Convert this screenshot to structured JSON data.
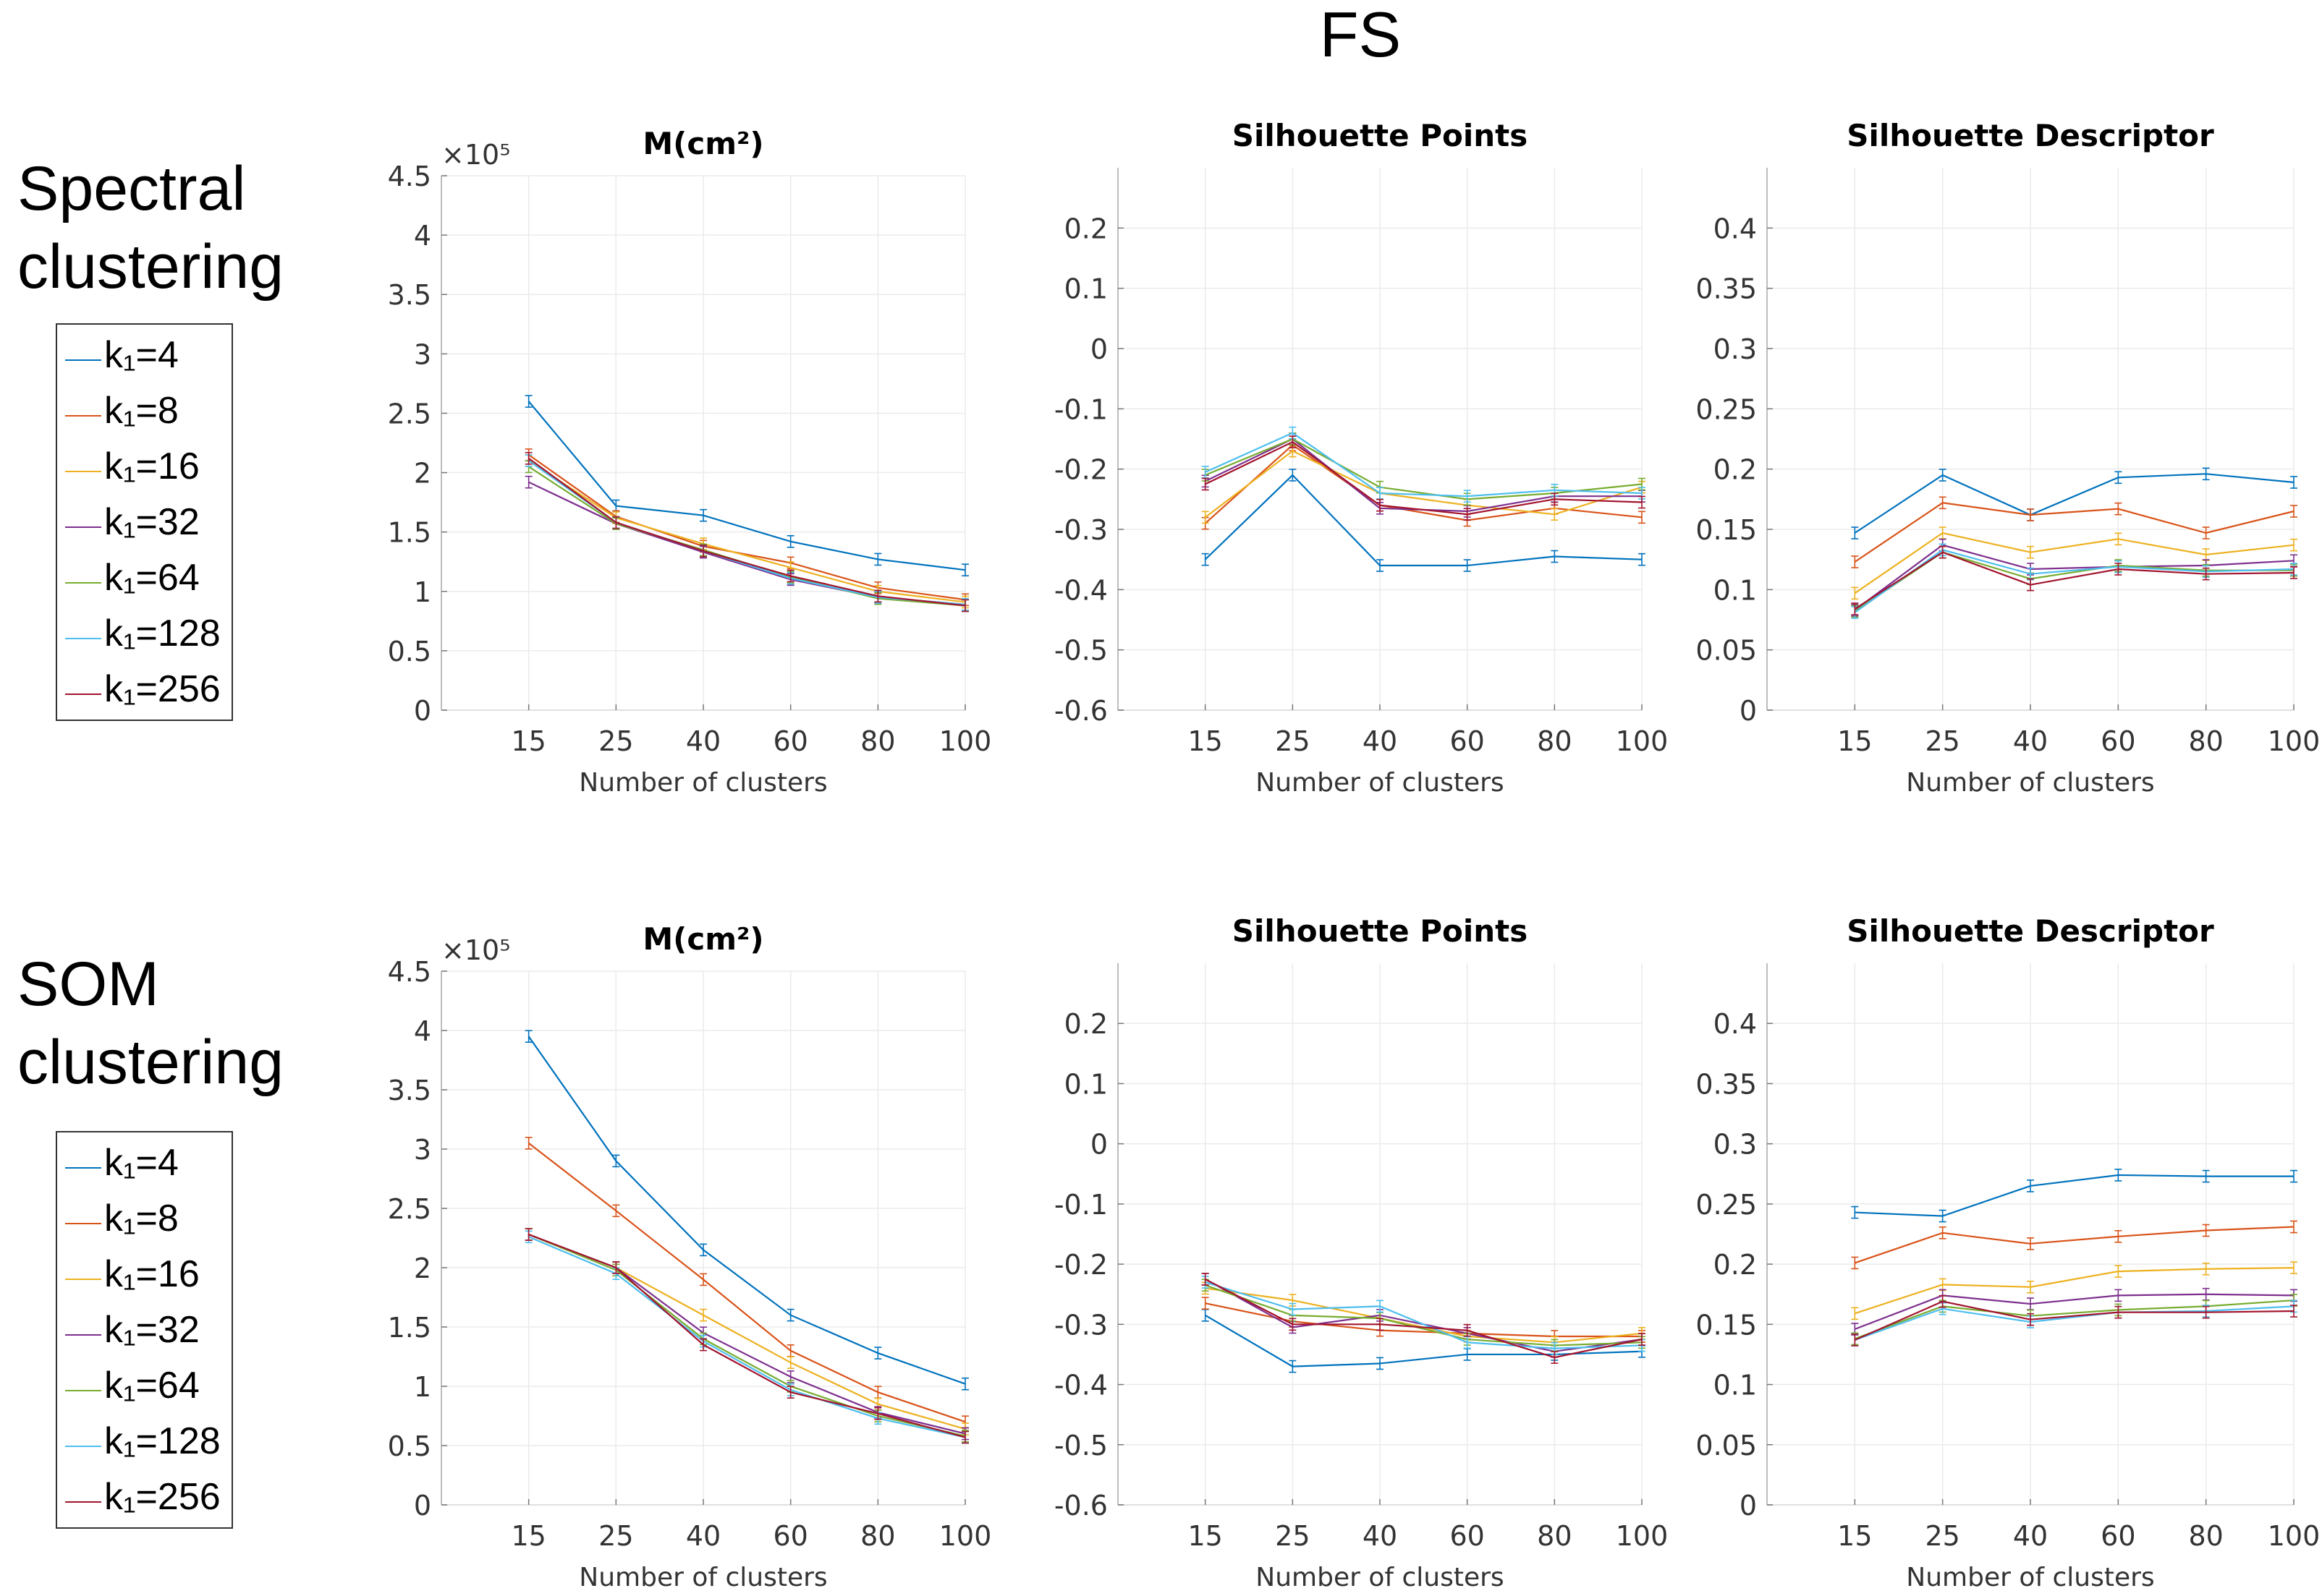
{
  "figure": {
    "title": "FS",
    "row_labels": [
      [
        "Spectral",
        "clustering"
      ],
      [
        "SOM",
        "clustering"
      ]
    ]
  },
  "legend": {
    "entries": [
      "k₁=4",
      "k₁=8",
      "k₁=16",
      "k₁=32",
      "k₁=64",
      "k₁=128",
      "k₁=256"
    ],
    "colors": [
      "#0072BD",
      "#D95319",
      "#EDB120",
      "#7E2F8E",
      "#77AC30",
      "#4DBEEE",
      "#A2142F"
    ]
  },
  "chart_data": [
    {
      "type": "line",
      "title": "M(cm²)",
      "xlabel": "Number of clusters",
      "ylabel": "",
      "categories": [
        "15",
        "25",
        "40",
        "60",
        "80",
        "100"
      ],
      "ylim": [
        0,
        4.5
      ],
      "yticks": [
        "0",
        "0.5",
        "1",
        "1.5",
        "2",
        "2.5",
        "3",
        "3.5",
        "4",
        "4.5"
      ],
      "yscale_label": "×10⁵",
      "series": [
        {
          "name": "k₁=4",
          "values": [
            2.6,
            1.72,
            1.64,
            1.42,
            1.27,
            1.18
          ]
        },
        {
          "name": "k₁=8",
          "values": [
            2.15,
            1.63,
            1.38,
            1.24,
            1.03,
            0.93
          ]
        },
        {
          "name": "k₁=16",
          "values": [
            2.1,
            1.62,
            1.4,
            1.2,
            1.0,
            0.91
          ]
        },
        {
          "name": "k₁=32",
          "values": [
            1.92,
            1.57,
            1.33,
            1.1,
            0.95,
            0.89
          ]
        },
        {
          "name": "k₁=64",
          "values": [
            2.05,
            1.57,
            1.35,
            1.12,
            0.94,
            0.88
          ]
        },
        {
          "name": "k₁=128",
          "values": [
            2.1,
            1.58,
            1.34,
            1.11,
            0.95,
            0.89
          ]
        },
        {
          "name": "k₁=256",
          "values": [
            2.12,
            1.58,
            1.34,
            1.13,
            0.96,
            0.88
          ]
        }
      ]
    },
    {
      "type": "line",
      "title": "Silhouette Points",
      "xlabel": "Number of clusters",
      "ylabel": "",
      "categories": [
        "15",
        "25",
        "40",
        "60",
        "80",
        "100"
      ],
      "ylim": [
        -0.6,
        0.3
      ],
      "yticks": [
        "-0.6",
        "-0.5",
        "-0.4",
        "-0.3",
        "-0.2",
        "-0.1",
        "0",
        "0.1",
        "0.2"
      ],
      "series": [
        {
          "name": "k₁=4",
          "values": [
            -0.35,
            -0.21,
            -0.36,
            -0.36,
            -0.345,
            -0.35
          ]
        },
        {
          "name": "k₁=8",
          "values": [
            -0.29,
            -0.16,
            -0.26,
            -0.285,
            -0.265,
            -0.28
          ]
        },
        {
          "name": "k₁=16",
          "values": [
            -0.28,
            -0.17,
            -0.24,
            -0.26,
            -0.275,
            -0.23
          ]
        },
        {
          "name": "k₁=32",
          "values": [
            -0.22,
            -0.15,
            -0.265,
            -0.27,
            -0.245,
            -0.245
          ]
        },
        {
          "name": "k₁=64",
          "values": [
            -0.21,
            -0.15,
            -0.23,
            -0.25,
            -0.24,
            -0.225
          ]
        },
        {
          "name": "k₁=128",
          "values": [
            -0.205,
            -0.14,
            -0.24,
            -0.245,
            -0.235,
            -0.24
          ]
        },
        {
          "name": "k₁=256",
          "values": [
            -0.225,
            -0.155,
            -0.26,
            -0.275,
            -0.25,
            -0.255
          ]
        }
      ]
    },
    {
      "type": "line",
      "title": "Silhouette Descriptor",
      "xlabel": "Number of clusters",
      "ylabel": "",
      "categories": [
        "15",
        "25",
        "40",
        "60",
        "80",
        "100"
      ],
      "ylim": [
        0,
        0.45
      ],
      "yticks": [
        "0",
        "0.05",
        "0.1",
        "0.15",
        "0.2",
        "0.25",
        "0.3",
        "0.35",
        "0.4"
      ],
      "series": [
        {
          "name": "k₁=4",
          "values": [
            0.147,
            0.195,
            0.162,
            0.193,
            0.196,
            0.189
          ]
        },
        {
          "name": "k₁=8",
          "values": [
            0.123,
            0.172,
            0.162,
            0.167,
            0.147,
            0.165
          ]
        },
        {
          "name": "k₁=16",
          "values": [
            0.097,
            0.147,
            0.131,
            0.142,
            0.129,
            0.137
          ]
        },
        {
          "name": "k₁=32",
          "values": [
            0.083,
            0.137,
            0.117,
            0.119,
            0.12,
            0.124
          ]
        },
        {
          "name": "k₁=64",
          "values": [
            0.082,
            0.131,
            0.109,
            0.12,
            0.116,
            0.116
          ]
        },
        {
          "name": "k₁=128",
          "values": [
            0.081,
            0.133,
            0.113,
            0.119,
            0.115,
            0.117
          ]
        },
        {
          "name": "k₁=256",
          "values": [
            0.084,
            0.131,
            0.104,
            0.117,
            0.113,
            0.114
          ]
        }
      ]
    },
    {
      "type": "line",
      "title": "M(cm²)",
      "xlabel": "Number of clusters",
      "ylabel": "",
      "categories": [
        "15",
        "25",
        "40",
        "60",
        "80",
        "100"
      ],
      "ylim": [
        0,
        4.5
      ],
      "yticks": [
        "0",
        "0.5",
        "1",
        "1.5",
        "2",
        "2.5",
        "3",
        "3.5",
        "4",
        "4.5"
      ],
      "yscale_label": "×10⁵",
      "series": [
        {
          "name": "k₁=4",
          "values": [
            3.95,
            2.9,
            2.15,
            1.6,
            1.28,
            1.02
          ]
        },
        {
          "name": "k₁=8",
          "values": [
            3.05,
            2.48,
            1.9,
            1.3,
            0.95,
            0.7
          ]
        },
        {
          "name": "k₁=16",
          "values": [
            2.28,
            2.0,
            1.6,
            1.2,
            0.85,
            0.64
          ]
        },
        {
          "name": "k₁=32",
          "values": [
            2.28,
            2.0,
            1.45,
            1.08,
            0.78,
            0.6
          ]
        },
        {
          "name": "k₁=64",
          "values": [
            2.28,
            1.98,
            1.4,
            1.0,
            0.75,
            0.58
          ]
        },
        {
          "name": "k₁=128",
          "values": [
            2.26,
            1.95,
            1.38,
            0.97,
            0.73,
            0.57
          ]
        },
        {
          "name": "k₁=256",
          "values": [
            2.28,
            2.0,
            1.35,
            0.95,
            0.77,
            0.57
          ]
        }
      ]
    },
    {
      "type": "line",
      "title": "Silhouette Points",
      "xlabel": "Number of clusters",
      "ylabel": "",
      "categories": [
        "15",
        "25",
        "40",
        "60",
        "80",
        "100"
      ],
      "ylim": [
        -0.6,
        0.3
      ],
      "yticks": [
        "-0.6",
        "-0.5",
        "-0.4",
        "-0.3",
        "-0.2",
        "-0.1",
        "0",
        "0.1",
        "0.2"
      ],
      "series": [
        {
          "name": "k₁=4",
          "values": [
            -0.285,
            -0.37,
            -0.365,
            -0.35,
            -0.35,
            -0.345
          ]
        },
        {
          "name": "k₁=8",
          "values": [
            -0.265,
            -0.295,
            -0.31,
            -0.315,
            -0.32,
            -0.32
          ]
        },
        {
          "name": "k₁=16",
          "values": [
            -0.24,
            -0.26,
            -0.29,
            -0.32,
            -0.33,
            -0.315
          ]
        },
        {
          "name": "k₁=32",
          "values": [
            -0.225,
            -0.305,
            -0.285,
            -0.315,
            -0.345,
            -0.325
          ]
        },
        {
          "name": "k₁=64",
          "values": [
            -0.235,
            -0.285,
            -0.29,
            -0.325,
            -0.335,
            -0.33
          ]
        },
        {
          "name": "k₁=128",
          "values": [
            -0.23,
            -0.275,
            -0.27,
            -0.33,
            -0.34,
            -0.335
          ]
        },
        {
          "name": "k₁=256",
          "values": [
            -0.225,
            -0.3,
            -0.3,
            -0.31,
            -0.355,
            -0.325
          ]
        }
      ]
    },
    {
      "type": "line",
      "title": "Silhouette Descriptor",
      "xlabel": "Number of clusters",
      "ylabel": "",
      "categories": [
        "15",
        "25",
        "40",
        "60",
        "80",
        "100"
      ],
      "ylim": [
        0,
        0.45
      ],
      "yticks": [
        "0",
        "0.05",
        "0.1",
        "0.15",
        "0.2",
        "0.25",
        "0.3",
        "0.35",
        "0.4"
      ],
      "series": [
        {
          "name": "k₁=4",
          "values": [
            0.243,
            0.24,
            0.265,
            0.274,
            0.273,
            0.273
          ]
        },
        {
          "name": "k₁=8",
          "values": [
            0.201,
            0.226,
            0.217,
            0.223,
            0.228,
            0.231
          ]
        },
        {
          "name": "k₁=16",
          "values": [
            0.159,
            0.183,
            0.181,
            0.194,
            0.196,
            0.197
          ]
        },
        {
          "name": "k₁=32",
          "values": [
            0.146,
            0.174,
            0.167,
            0.174,
            0.175,
            0.174
          ]
        },
        {
          "name": "k₁=64",
          "values": [
            0.138,
            0.165,
            0.157,
            0.162,
            0.165,
            0.17
          ]
        },
        {
          "name": "k₁=128",
          "values": [
            0.137,
            0.163,
            0.152,
            0.16,
            0.161,
            0.165
          ]
        },
        {
          "name": "k₁=256",
          "values": [
            0.137,
            0.169,
            0.154,
            0.16,
            0.16,
            0.161
          ]
        }
      ]
    }
  ]
}
